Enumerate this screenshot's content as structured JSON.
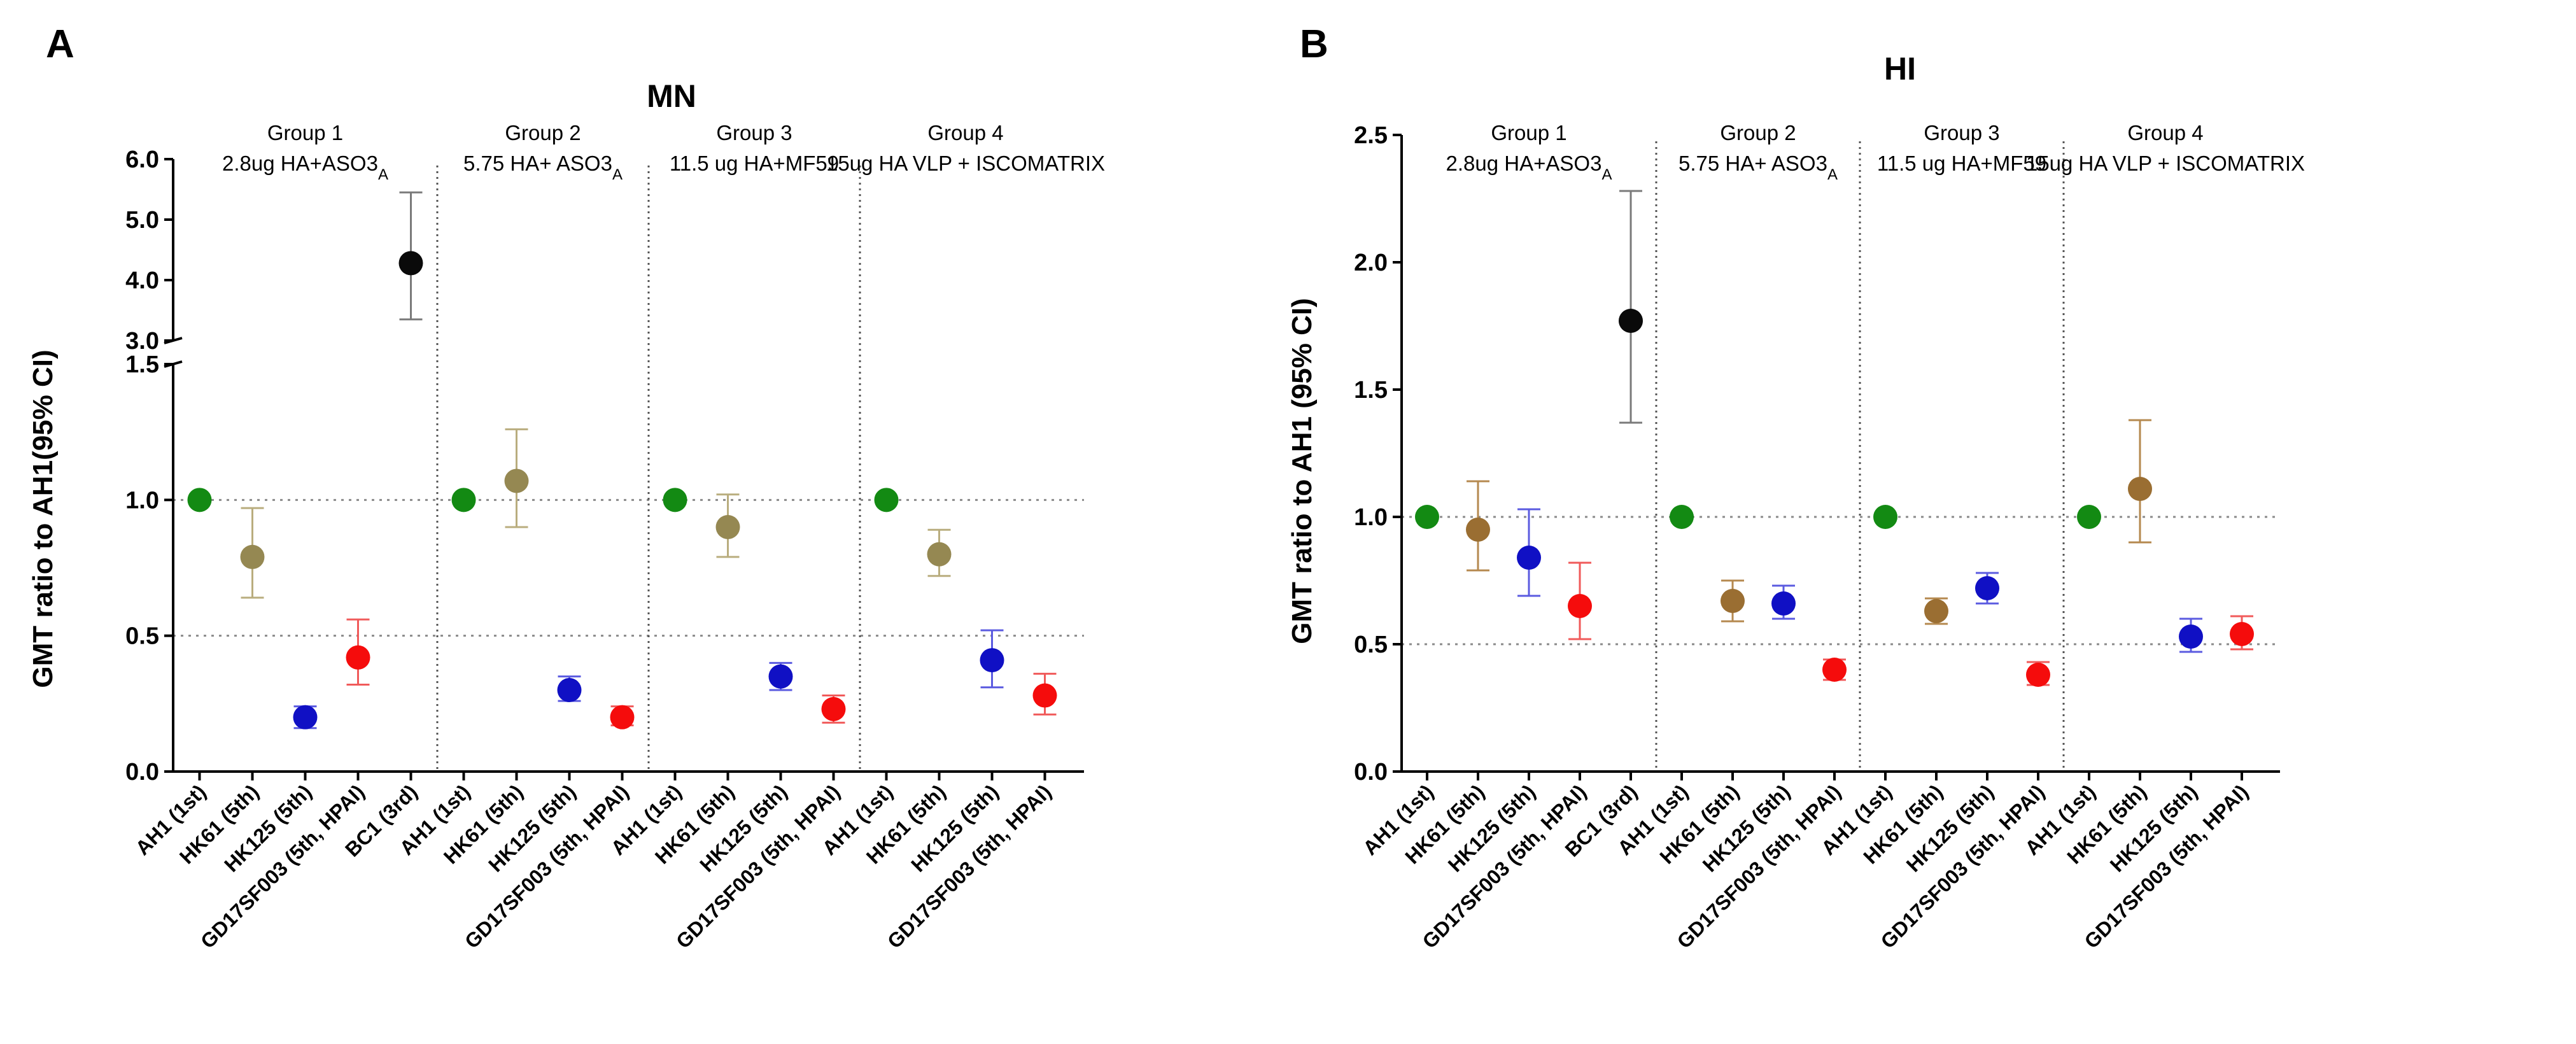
{
  "colors": {
    "AH1": "#138a13",
    "HK61_MN": "#958852",
    "HK61_HI": "#9a6e32",
    "HK125": "#1010c4",
    "GD17": "#f50c0c",
    "BC1": "#0a0a0a",
    "err_AH1": "#138a13",
    "err_HK61_MN": "#b9ad7e",
    "err_HK61_HI": "#b5894f",
    "err_HK125": "#5b5be0",
    "err_GD17": "#f05a5a",
    "err_BC1": "#7a7a7a"
  },
  "chart_data": [
    {
      "type": "scatter",
      "panel": "A",
      "title": "MN",
      "ylabel": "GMT ratio to AH1(95% CI)",
      "y_axis_broken": true,
      "y_lower_range": [
        0.0,
        1.5
      ],
      "y_upper_range": [
        3.0,
        6.0
      ],
      "y_lower_ticks": [
        "0.0",
        "0.5",
        "1.0",
        "1.5"
      ],
      "y_upper_ticks": [
        "3.0",
        "4.0",
        "5.0",
        "6.0"
      ],
      "reference_lines": [
        1.0,
        0.5
      ],
      "groups": [
        {
          "name": "Group 1",
          "regimen_main": "2.8ug HA+ASO3",
          "regimen_sub": "A",
          "points": [
            {
              "label": "AH1 (1st)",
              "key": "AH1",
              "value": 1.0
            },
            {
              "label": "HK61 (5th)",
              "key": "HK61_MN",
              "value": 0.79,
              "ci": [
                0.64,
                0.97
              ]
            },
            {
              "label": "HK125 (5th)",
              "key": "HK125",
              "value": 0.2,
              "ci": [
                0.16,
                0.24
              ]
            },
            {
              "label": "GD17SF003 (5th, HPAI)",
              "key": "GD17",
              "value": 0.42,
              "ci": [
                0.32,
                0.56
              ]
            },
            {
              "label": "BC1 (3rd)",
              "key": "BC1",
              "value": 4.28,
              "ci": [
                3.35,
                5.45
              ]
            }
          ]
        },
        {
          "name": "Group 2",
          "regimen_main": "5.75 HA+ ASO3",
          "regimen_sub": "A",
          "points": [
            {
              "label": "AH1 (1st)",
              "key": "AH1",
              "value": 1.0
            },
            {
              "label": "HK61 (5th)",
              "key": "HK61_MN",
              "value": 1.07,
              "ci": [
                0.9,
                1.26
              ]
            },
            {
              "label": "HK125 (5th)",
              "key": "HK125",
              "value": 0.3,
              "ci": [
                0.26,
                0.35
              ]
            },
            {
              "label": "GD17SF003 (5th, HPAI)",
              "key": "GD17",
              "value": 0.2,
              "ci": [
                0.17,
                0.24
              ]
            }
          ]
        },
        {
          "name": "Group 3",
          "regimen_main": "11.5 ug HA+MF59",
          "regimen_sub": "",
          "points": [
            {
              "label": "AH1 (1st)",
              "key": "AH1",
              "value": 1.0
            },
            {
              "label": "HK61 (5th)",
              "key": "HK61_MN",
              "value": 0.9,
              "ci": [
                0.79,
                1.02
              ]
            },
            {
              "label": "HK125 (5th)",
              "key": "HK125",
              "value": 0.35,
              "ci": [
                0.3,
                0.4
              ]
            },
            {
              "label": "GD17SF003 (5th, HPAI)",
              "key": "GD17",
              "value": 0.23,
              "ci": [
                0.18,
                0.28
              ]
            }
          ]
        },
        {
          "name": "Group 4",
          "regimen_main": "15ug HA VLP + ISCOMATRIX",
          "regimen_sub": "",
          "points": [
            {
              "label": "AH1 (1st)",
              "key": "AH1",
              "value": 1.0
            },
            {
              "label": "HK61 (5th)",
              "key": "HK61_MN",
              "value": 0.8,
              "ci": [
                0.72,
                0.89
              ]
            },
            {
              "label": "HK125 (5th)",
              "key": "HK125",
              "value": 0.41,
              "ci": [
                0.31,
                0.52
              ]
            },
            {
              "label": "GD17SF003 (5th, HPAI)",
              "key": "GD17",
              "value": 0.28,
              "ci": [
                0.21,
                0.36
              ]
            }
          ]
        }
      ]
    },
    {
      "type": "scatter",
      "panel": "B",
      "title": "HI",
      "ylabel": "GMT ratio to AH1 (95% CI)",
      "y_axis_broken": false,
      "ylim": [
        0.0,
        2.5
      ],
      "y_ticks": [
        "0.0",
        "0.5",
        "1.0",
        "1.5",
        "2.0",
        "2.5"
      ],
      "reference_lines": [
        1.0,
        0.5
      ],
      "groups": [
        {
          "name": "Group 1",
          "regimen_main": "2.8ug HA+ASO3",
          "regimen_sub": "A",
          "points": [
            {
              "label": "AH1 (1st)",
              "key": "AH1",
              "value": 1.0
            },
            {
              "label": "HK61 (5th)",
              "key": "HK61_HI",
              "value": 0.95,
              "ci": [
                0.79,
                1.14
              ]
            },
            {
              "label": "HK125 (5th)",
              "key": "HK125",
              "value": 0.84,
              "ci": [
                0.69,
                1.03
              ]
            },
            {
              "label": "GD17SF003 (5th, HPAI)",
              "key": "GD17",
              "value": 0.65,
              "ci": [
                0.52,
                0.82
              ]
            },
            {
              "label": "BC1 (3rd)",
              "key": "BC1",
              "value": 1.77,
              "ci": [
                1.37,
                2.28
              ]
            }
          ]
        },
        {
          "name": "Group 2",
          "regimen_main": "5.75 HA+ ASO3",
          "regimen_sub": "A",
          "points": [
            {
              "label": "AH1 (1st)",
              "key": "AH1",
              "value": 1.0
            },
            {
              "label": "HK61 (5th)",
              "key": "HK61_HI",
              "value": 0.67,
              "ci": [
                0.59,
                0.75
              ]
            },
            {
              "label": "HK125 (5th)",
              "key": "HK125",
              "value": 0.66,
              "ci": [
                0.6,
                0.73
              ]
            },
            {
              "label": "GD17SF003 (5th, HPAI)",
              "key": "GD17",
              "value": 0.4,
              "ci": [
                0.36,
                0.44
              ]
            }
          ]
        },
        {
          "name": "Group 3",
          "regimen_main": "11.5 ug HA+MF59",
          "regimen_sub": "",
          "points": [
            {
              "label": "AH1 (1st)",
              "key": "AH1",
              "value": 1.0
            },
            {
              "label": "HK61 (5th)",
              "key": "HK61_HI",
              "value": 0.63,
              "ci": [
                0.58,
                0.68
              ]
            },
            {
              "label": "HK125 (5th)",
              "key": "HK125",
              "value": 0.72,
              "ci": [
                0.66,
                0.78
              ]
            },
            {
              "label": "GD17SF003 (5th, HPAI)",
              "key": "GD17",
              "value": 0.38,
              "ci": [
                0.34,
                0.43
              ]
            }
          ]
        },
        {
          "name": "Group 4",
          "regimen_main": "15ug HA VLP + ISCOMATRIX",
          "regimen_sub": "",
          "points": [
            {
              "label": "AH1 (1st)",
              "key": "AH1",
              "value": 1.0
            },
            {
              "label": "HK61 (5th)",
              "key": "HK61_HI",
              "value": 1.11,
              "ci": [
                0.9,
                1.38
              ]
            },
            {
              "label": "HK125 (5th)",
              "key": "HK125",
              "value": 0.53,
              "ci": [
                0.47,
                0.6
              ]
            },
            {
              "label": "GD17SF003 (5th, HPAI)",
              "key": "GD17",
              "value": 0.54,
              "ci": [
                0.48,
                0.61
              ]
            }
          ]
        }
      ]
    }
  ]
}
